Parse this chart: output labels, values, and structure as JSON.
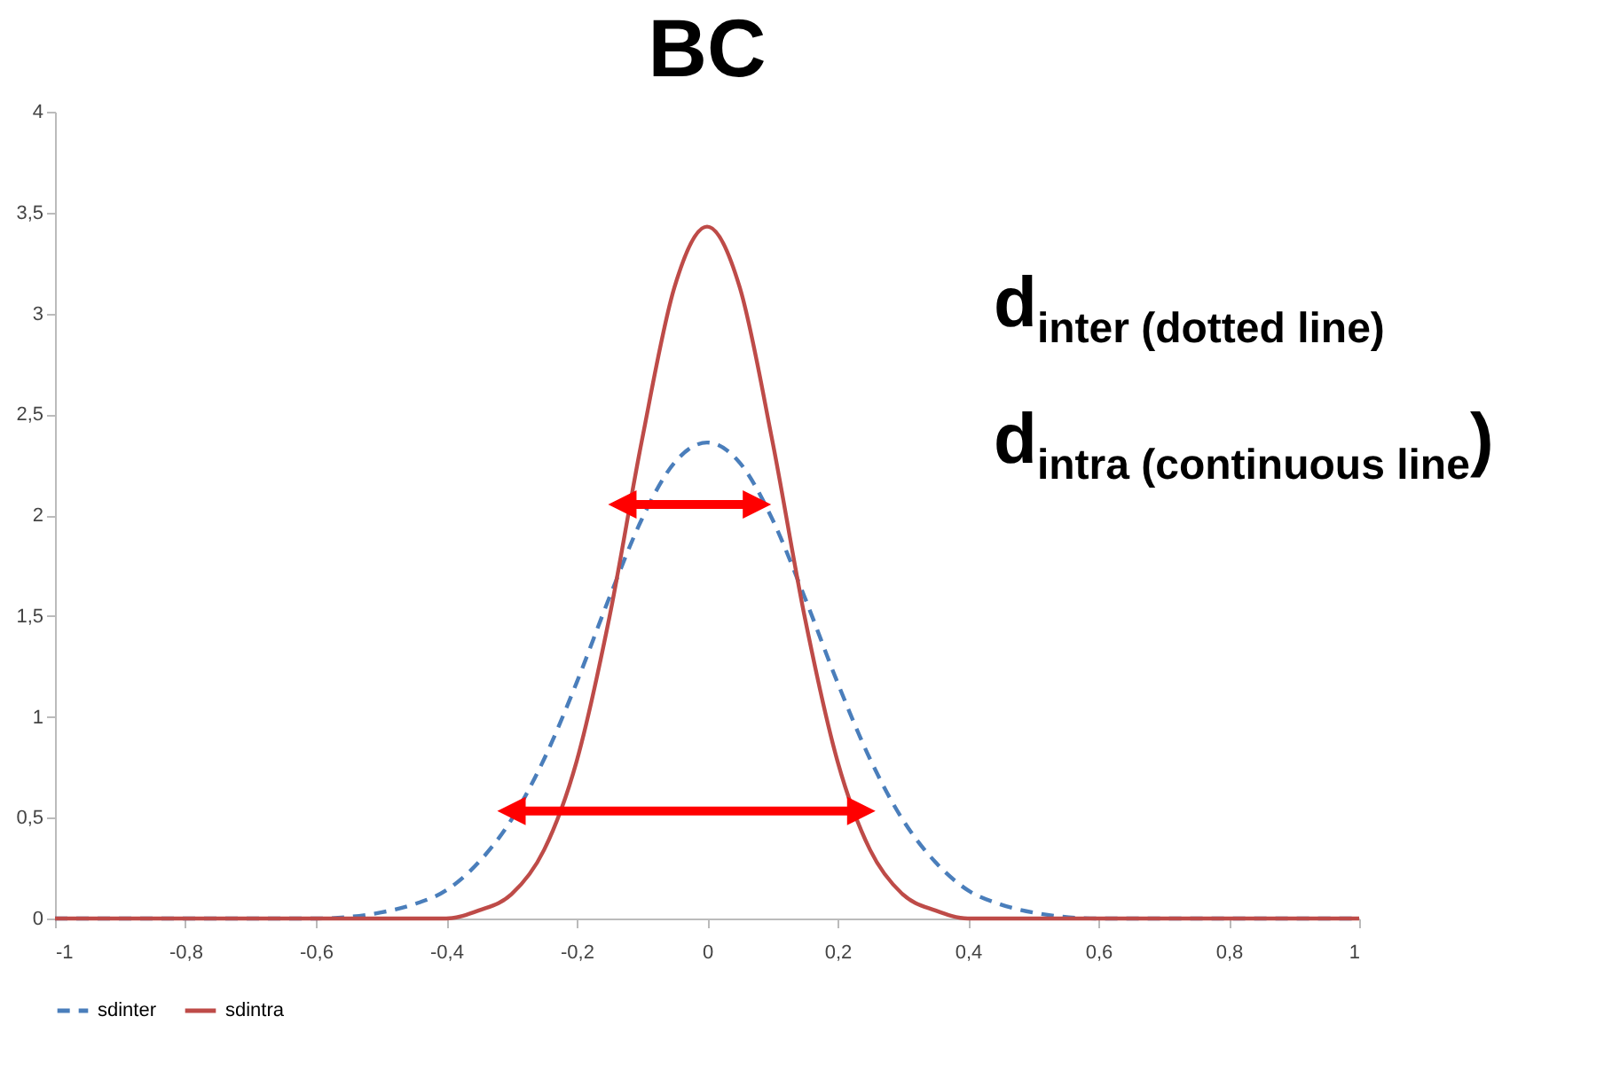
{
  "chart_data": {
    "type": "line",
    "title": "BC",
    "annotations": [
      "d$_{inter (dotted  line)}$",
      "d$_{intra (continuous line}$)"
    ],
    "x": [
      -1,
      -0.8,
      -0.6,
      -0.5,
      -0.45,
      -0.4,
      -0.35,
      -0.3,
      -0.25,
      -0.2,
      -0.15,
      -0.1,
      -0.05,
      0,
      0.05,
      0.1,
      0.15,
      0.2,
      0.25,
      0.3,
      0.35,
      0.4,
      0.45,
      0.5,
      0.6,
      0.8,
      1
    ],
    "series": [
      {
        "name": "sdinter",
        "color": "#4a7ebb",
        "line_style": "dashed",
        "values": [
          0,
          0,
          0,
          0.03,
          0.07,
          0.14,
          0.28,
          0.49,
          0.79,
          1.17,
          1.59,
          1.98,
          2.26,
          2.36,
          2.26,
          1.98,
          1.59,
          1.17,
          0.79,
          0.49,
          0.28,
          0.14,
          0.07,
          0.03,
          0,
          0,
          0
        ]
      },
      {
        "name": "sdintra",
        "color": "#be4b48",
        "line_style": "solid",
        "values": [
          0,
          0,
          0,
          0,
          0,
          0,
          0.04,
          0.12,
          0.34,
          0.78,
          1.49,
          2.37,
          3.13,
          3.43,
          3.13,
          2.37,
          1.49,
          0.78,
          0.34,
          0.12,
          0.04,
          0,
          0,
          0,
          0,
          0,
          0
        ]
      }
    ],
    "xlim": [
      -1,
      1
    ],
    "xticks": [
      {
        "value": -1,
        "label": "-1"
      },
      {
        "value": -0.8,
        "label": "-0,8"
      },
      {
        "value": -0.6,
        "label": "-0,6"
      },
      {
        "value": -0.4,
        "label": "-0,4"
      },
      {
        "value": -0.2,
        "label": "-0,2"
      },
      0,
      {
        "value": 0.2,
        "label": "0,2"
      },
      {
        "value": 0.4,
        "label": "0,4"
      },
      {
        "value": 0.6,
        "label": "0,6"
      },
      {
        "value": 0.8,
        "label": "0,8"
      },
      1
    ],
    "ylim": [
      0,
      4
    ],
    "yticks": [
      0,
      {
        "value": 0.5,
        "label": "0,5"
      },
      1,
      {
        "value": 1.5,
        "label": "1,5"
      },
      2,
      {
        "value": 2.5,
        "label": "2,5"
      },
      3,
      {
        "value": 3.5,
        "label": "3,5"
      },
      4
    ],
    "legend": "bottom",
    "grid": false,
    "marker": "none"
  }
}
